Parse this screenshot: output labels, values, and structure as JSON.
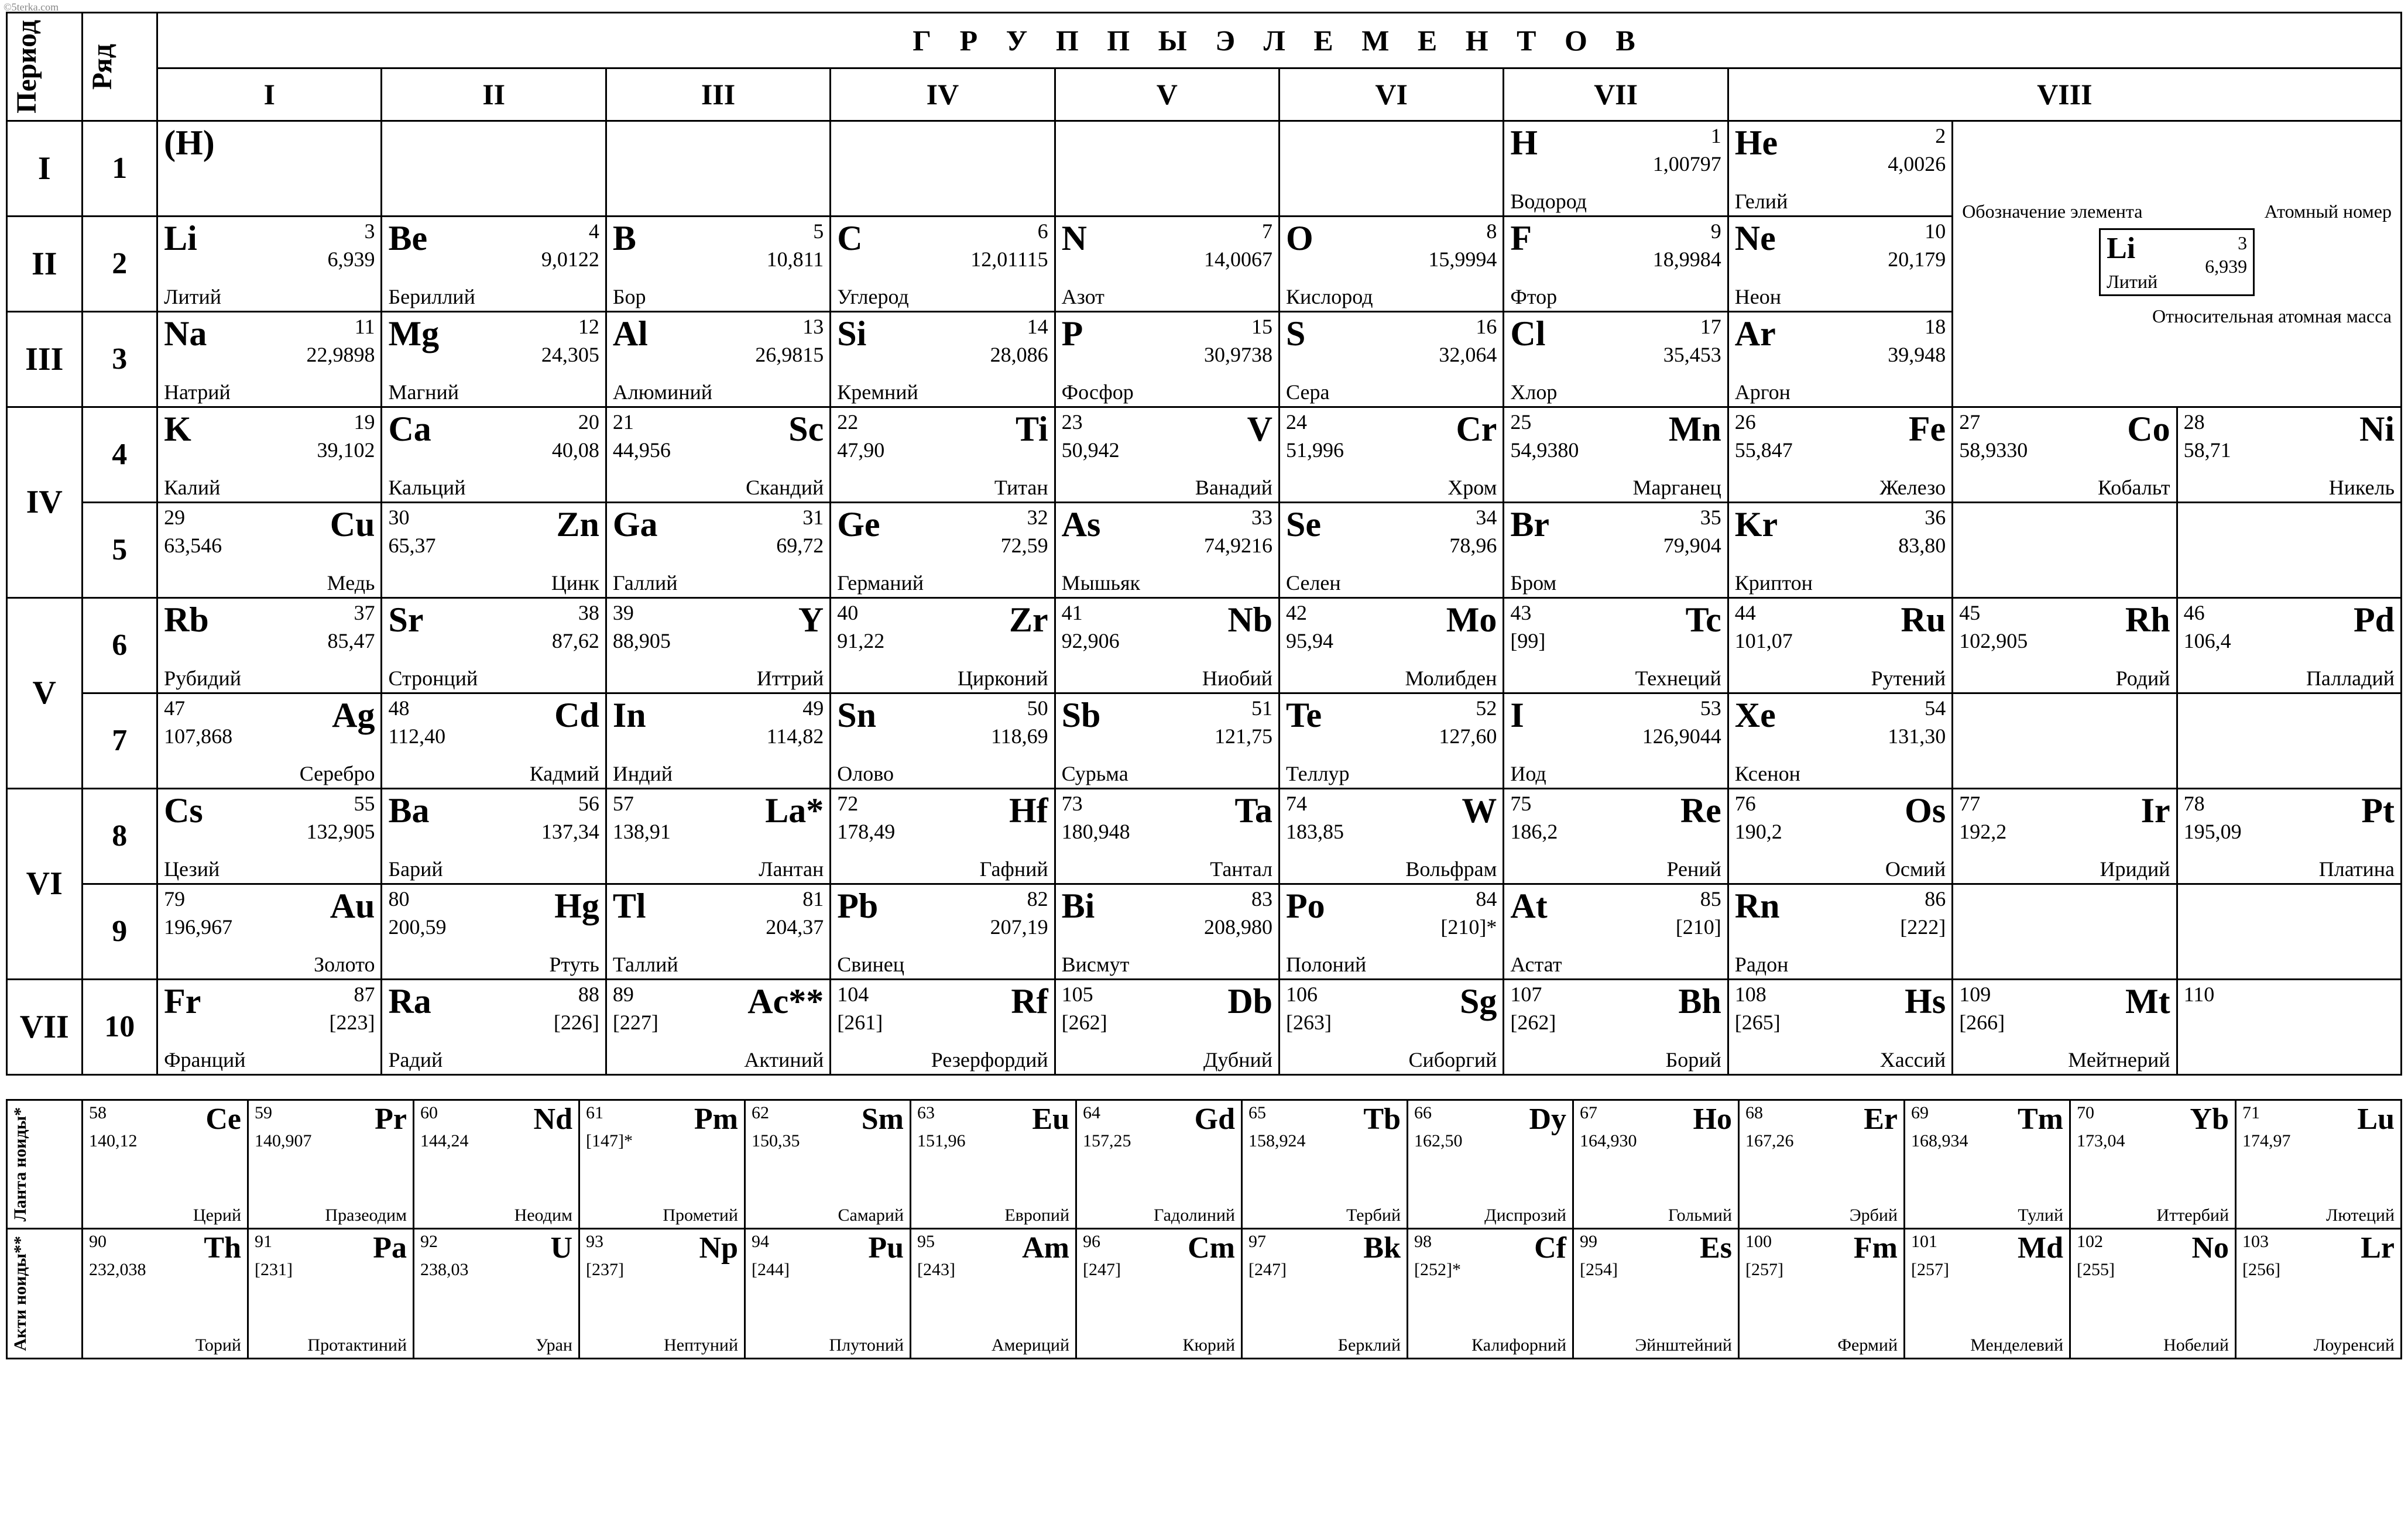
{
  "watermark": "©5terka.com",
  "header_groups": "Г Р У П П Ы   Э Л Е М Е Н Т О В",
  "col_period": "Период",
  "col_row": "Ряд",
  "groups": [
    "I",
    "II",
    "III",
    "IV",
    "V",
    "VI",
    "VII",
    "VIII"
  ],
  "periods": [
    "I",
    "II",
    "III",
    "IV",
    "V",
    "VI",
    "VII"
  ],
  "legend": {
    "designation": "Обозначение элемента",
    "atomic_no": "Атомный номер",
    "mass": "Относительная атомная масса",
    "sym": "Li",
    "num": "3",
    "massv": "6,939",
    "name": "Литий"
  },
  "lant_label": "Ланта ноиды*",
  "act_label": "Акти ноиды**",
  "rows": [
    {
      "period": "I",
      "row": "1",
      "cells": [
        {
          "align": "A",
          "sym": "(H)",
          "num": "",
          "mass": "",
          "name": ""
        },
        null,
        null,
        null,
        null,
        null,
        {
          "align": "A",
          "sym": "H",
          "num": "1",
          "mass": "1,00797",
          "name": "Водород"
        },
        {
          "align": "A",
          "sym": "He",
          "num": "2",
          "mass": "4,0026",
          "name": "Гелий"
        },
        {
          "legend": true
        },
        {
          "legend": true
        }
      ]
    },
    {
      "period": "II",
      "row": "2",
      "cells": [
        {
          "align": "A",
          "sym": "Li",
          "num": "3",
          "mass": "6,939",
          "name": "Литий"
        },
        {
          "align": "A",
          "sym": "Be",
          "num": "4",
          "mass": "9,0122",
          "name": "Бериллий"
        },
        {
          "align": "A",
          "sym": "B",
          "num": "5",
          "mass": "10,811",
          "name": "Бор"
        },
        {
          "align": "A",
          "sym": "C",
          "num": "6",
          "mass": "12,01115",
          "name": "Углерод"
        },
        {
          "align": "A",
          "sym": "N",
          "num": "7",
          "mass": "14,0067",
          "name": "Азот"
        },
        {
          "align": "A",
          "sym": "O",
          "num": "8",
          "mass": "15,9994",
          "name": "Кислород"
        },
        {
          "align": "A",
          "sym": "F",
          "num": "9",
          "mass": "18,9984",
          "name": "Фтор"
        },
        {
          "align": "A",
          "sym": "Ne",
          "num": "10",
          "mass": "20,179",
          "name": "Неон"
        },
        {
          "legend": true
        },
        {
          "legend": true
        }
      ]
    },
    {
      "period": "III",
      "row": "3",
      "cells": [
        {
          "align": "A",
          "sym": "Na",
          "num": "11",
          "mass": "22,9898",
          "name": "Натрий"
        },
        {
          "align": "A",
          "sym": "Mg",
          "num": "12",
          "mass": "24,305",
          "name": "Магний"
        },
        {
          "align": "A",
          "sym": "Al",
          "num": "13",
          "mass": "26,9815",
          "name": "Алюминий"
        },
        {
          "align": "A",
          "sym": "Si",
          "num": "14",
          "mass": "28,086",
          "name": "Кремний"
        },
        {
          "align": "A",
          "sym": "P",
          "num": "15",
          "mass": "30,9738",
          "name": "Фосфор"
        },
        {
          "align": "A",
          "sym": "S",
          "num": "16",
          "mass": "32,064",
          "name": "Сера"
        },
        {
          "align": "A",
          "sym": "Cl",
          "num": "17",
          "mass": "35,453",
          "name": "Хлор"
        },
        {
          "align": "A",
          "sym": "Ar",
          "num": "18",
          "mass": "39,948",
          "name": "Аргон"
        },
        {
          "legend": true
        },
        {
          "legend": true
        }
      ]
    },
    {
      "period": "IV",
      "row": "4",
      "cells": [
        {
          "align": "A",
          "sym": "K",
          "num": "19",
          "mass": "39,102",
          "name": "Калий"
        },
        {
          "align": "A",
          "sym": "Ca",
          "num": "20",
          "mass": "40,08",
          "name": "Кальций"
        },
        {
          "align": "B",
          "sym": "Sc",
          "num": "21",
          "mass": "44,956",
          "name": "Скандий"
        },
        {
          "align": "B",
          "sym": "Ti",
          "num": "22",
          "mass": "47,90",
          "name": "Титан"
        },
        {
          "align": "B",
          "sym": "V",
          "num": "23",
          "mass": "50,942",
          "name": "Ванадий"
        },
        {
          "align": "B",
          "sym": "Cr",
          "num": "24",
          "mass": "51,996",
          "name": "Хром"
        },
        {
          "align": "B",
          "sym": "Mn",
          "num": "25",
          "mass": "54,9380",
          "name": "Марганец"
        },
        {
          "align": "B",
          "sym": "Fe",
          "num": "26",
          "mass": "55,847",
          "name": "Железо"
        },
        {
          "align": "B",
          "sym": "Co",
          "num": "27",
          "mass": "58,9330",
          "name": "Кобальт"
        },
        {
          "align": "B",
          "sym": "Ni",
          "num": "28",
          "mass": "58,71",
          "name": "Никель"
        }
      ]
    },
    {
      "period": "",
      "row": "5",
      "cells": [
        {
          "align": "B",
          "sym": "Cu",
          "num": "29",
          "mass": "63,546",
          "name": "Медь"
        },
        {
          "align": "B",
          "sym": "Zn",
          "num": "30",
          "mass": "65,37",
          "name": "Цинк"
        },
        {
          "align": "A",
          "sym": "Ga",
          "num": "31",
          "mass": "69,72",
          "name": "Галлий"
        },
        {
          "align": "A",
          "sym": "Ge",
          "num": "32",
          "mass": "72,59",
          "name": "Германий"
        },
        {
          "align": "A",
          "sym": "As",
          "num": "33",
          "mass": "74,9216",
          "name": "Мышьяк"
        },
        {
          "align": "A",
          "sym": "Se",
          "num": "34",
          "mass": "78,96",
          "name": "Селен"
        },
        {
          "align": "A",
          "sym": "Br",
          "num": "35",
          "mass": "79,904",
          "name": "Бром"
        },
        {
          "align": "A",
          "sym": "Kr",
          "num": "36",
          "mass": "83,80",
          "name": "Криптон"
        },
        null,
        null
      ]
    },
    {
      "period": "V",
      "row": "6",
      "cells": [
        {
          "align": "A",
          "sym": "Rb",
          "num": "37",
          "mass": "85,47",
          "name": "Рубидий"
        },
        {
          "align": "A",
          "sym": "Sr",
          "num": "38",
          "mass": "87,62",
          "name": "Стронций"
        },
        {
          "align": "B",
          "sym": "Y",
          "num": "39",
          "mass": "88,905",
          "name": "Иттрий"
        },
        {
          "align": "B",
          "sym": "Zr",
          "num": "40",
          "mass": "91,22",
          "name": "Цирконий"
        },
        {
          "align": "B",
          "sym": "Nb",
          "num": "41",
          "mass": "92,906",
          "name": "Ниобий"
        },
        {
          "align": "B",
          "sym": "Mo",
          "num": "42",
          "mass": "95,94",
          "name": "Молибден"
        },
        {
          "align": "B",
          "sym": "Tc",
          "num": "43",
          "mass": "[99]",
          "name": "Технеций"
        },
        {
          "align": "B",
          "sym": "Ru",
          "num": "44",
          "mass": "101,07",
          "name": "Рутений"
        },
        {
          "align": "B",
          "sym": "Rh",
          "num": "45",
          "mass": "102,905",
          "name": "Родий"
        },
        {
          "align": "B",
          "sym": "Pd",
          "num": "46",
          "mass": "106,4",
          "name": "Палладий"
        }
      ]
    },
    {
      "period": "",
      "row": "7",
      "cells": [
        {
          "align": "B",
          "sym": "Ag",
          "num": "47",
          "mass": "107,868",
          "name": "Серебро"
        },
        {
          "align": "B",
          "sym": "Cd",
          "num": "48",
          "mass": "112,40",
          "name": "Кадмий"
        },
        {
          "align": "A",
          "sym": "In",
          "num": "49",
          "mass": "114,82",
          "name": "Индий"
        },
        {
          "align": "A",
          "sym": "Sn",
          "num": "50",
          "mass": "118,69",
          "name": "Олово"
        },
        {
          "align": "A",
          "sym": "Sb",
          "num": "51",
          "mass": "121,75",
          "name": "Сурьма"
        },
        {
          "align": "A",
          "sym": "Te",
          "num": "52",
          "mass": "127,60",
          "name": "Теллур"
        },
        {
          "align": "A",
          "sym": "I",
          "num": "53",
          "mass": "126,9044",
          "name": "Иод"
        },
        {
          "align": "A",
          "sym": "Xe",
          "num": "54",
          "mass": "131,30",
          "name": "Ксенон"
        },
        null,
        null
      ]
    },
    {
      "period": "VI",
      "row": "8",
      "cells": [
        {
          "align": "A",
          "sym": "Cs",
          "num": "55",
          "mass": "132,905",
          "name": "Цезий"
        },
        {
          "align": "A",
          "sym": "Ba",
          "num": "56",
          "mass": "137,34",
          "name": "Барий"
        },
        {
          "align": "B",
          "sym": "La*",
          "num": "57",
          "mass": "138,91",
          "name": "Лантан"
        },
        {
          "align": "B",
          "sym": "Hf",
          "num": "72",
          "mass": "178,49",
          "name": "Гафний"
        },
        {
          "align": "B",
          "sym": "Ta",
          "num": "73",
          "mass": "180,948",
          "name": "Тантал"
        },
        {
          "align": "B",
          "sym": "W",
          "num": "74",
          "mass": "183,85",
          "name": "Вольфрам"
        },
        {
          "align": "B",
          "sym": "Re",
          "num": "75",
          "mass": "186,2",
          "name": "Рений"
        },
        {
          "align": "B",
          "sym": "Os",
          "num": "76",
          "mass": "190,2",
          "name": "Осмий"
        },
        {
          "align": "B",
          "sym": "Ir",
          "num": "77",
          "mass": "192,2",
          "name": "Иридий"
        },
        {
          "align": "B",
          "sym": "Pt",
          "num": "78",
          "mass": "195,09",
          "name": "Платина"
        }
      ]
    },
    {
      "period": "",
      "row": "9",
      "cells": [
        {
          "align": "B",
          "sym": "Au",
          "num": "79",
          "mass": "196,967",
          "name": "Золото"
        },
        {
          "align": "B",
          "sym": "Hg",
          "num": "80",
          "mass": "200,59",
          "name": "Ртуть"
        },
        {
          "align": "A",
          "sym": "Tl",
          "num": "81",
          "mass": "204,37",
          "name": "Таллий"
        },
        {
          "align": "A",
          "sym": "Pb",
          "num": "82",
          "mass": "207,19",
          "name": "Свинец"
        },
        {
          "align": "A",
          "sym": "Bi",
          "num": "83",
          "mass": "208,980",
          "name": "Висмут"
        },
        {
          "align": "A",
          "sym": "Po",
          "num": "84",
          "mass": "[210]*",
          "name": "Полоний"
        },
        {
          "align": "A",
          "sym": "At",
          "num": "85",
          "mass": "[210]",
          "name": "Астат"
        },
        {
          "align": "A",
          "sym": "Rn",
          "num": "86",
          "mass": "[222]",
          "name": "Радон"
        },
        null,
        null
      ]
    },
    {
      "period": "VII",
      "row": "10",
      "cells": [
        {
          "align": "A",
          "sym": "Fr",
          "num": "87",
          "mass": "[223]",
          "name": "Франций"
        },
        {
          "align": "A",
          "sym": "Ra",
          "num": "88",
          "mass": "[226]",
          "name": "Радий"
        },
        {
          "align": "B",
          "sym": "Ac**",
          "num": "89",
          "mass": "[227]",
          "name": "Актиний"
        },
        {
          "align": "B",
          "sym": "Rf",
          "num": "104",
          "mass": "[261]",
          "name": "Резерфордий"
        },
        {
          "align": "B",
          "sym": "Db",
          "num": "105",
          "mass": "[262]",
          "name": "Дубний"
        },
        {
          "align": "B",
          "sym": "Sg",
          "num": "106",
          "mass": "[263]",
          "name": "Сиборгий"
        },
        {
          "align": "B",
          "sym": "Bh",
          "num": "107",
          "mass": "[262]",
          "name": "Борий"
        },
        {
          "align": "B",
          "sym": "Hs",
          "num": "108",
          "mass": "[265]",
          "name": "Хассий"
        },
        {
          "align": "B",
          "sym": "Mt",
          "num": "109",
          "mass": "[266]",
          "name": "Мейтнерий"
        },
        {
          "align": "B",
          "sym": "",
          "num": "110",
          "mass": "",
          "name": ""
        }
      ]
    }
  ],
  "lanth": [
    {
      "sym": "Ce",
      "num": "58",
      "mass": "140,12",
      "name": "Церий"
    },
    {
      "sym": "Pr",
      "num": "59",
      "mass": "140,907",
      "name": "Празеодим"
    },
    {
      "sym": "Nd",
      "num": "60",
      "mass": "144,24",
      "name": "Неодим"
    },
    {
      "sym": "Pm",
      "num": "61",
      "mass": "[147]*",
      "name": "Прометий"
    },
    {
      "sym": "Sm",
      "num": "62",
      "mass": "150,35",
      "name": "Самарий"
    },
    {
      "sym": "Eu",
      "num": "63",
      "mass": "151,96",
      "name": "Европий"
    },
    {
      "sym": "Gd",
      "num": "64",
      "mass": "157,25",
      "name": "Гадолиний"
    },
    {
      "sym": "Tb",
      "num": "65",
      "mass": "158,924",
      "name": "Тербий"
    },
    {
      "sym": "Dy",
      "num": "66",
      "mass": "162,50",
      "name": "Диспрозий"
    },
    {
      "sym": "Ho",
      "num": "67",
      "mass": "164,930",
      "name": "Гольмий"
    },
    {
      "sym": "Er",
      "num": "68",
      "mass": "167,26",
      "name": "Эрбий"
    },
    {
      "sym": "Tm",
      "num": "69",
      "mass": "168,934",
      "name": "Тулий"
    },
    {
      "sym": "Yb",
      "num": "70",
      "mass": "173,04",
      "name": "Иттербий"
    },
    {
      "sym": "Lu",
      "num": "71",
      "mass": "174,97",
      "name": "Лютеций"
    }
  ],
  "act": [
    {
      "sym": "Th",
      "num": "90",
      "mass": "232,038",
      "name": "Торий"
    },
    {
      "sym": "Pa",
      "num": "91",
      "mass": "[231]",
      "name": "Протактиний"
    },
    {
      "sym": "U",
      "num": "92",
      "mass": "238,03",
      "name": "Уран"
    },
    {
      "sym": "Np",
      "num": "93",
      "mass": "[237]",
      "name": "Нептуний"
    },
    {
      "sym": "Pu",
      "num": "94",
      "mass": "[244]",
      "name": "Плутоний"
    },
    {
      "sym": "Am",
      "num": "95",
      "mass": "[243]",
      "name": "Америций"
    },
    {
      "sym": "Cm",
      "num": "96",
      "mass": "[247]",
      "name": "Кюрий"
    },
    {
      "sym": "Bk",
      "num": "97",
      "mass": "[247]",
      "name": "Берклий"
    },
    {
      "sym": "Cf",
      "num": "98",
      "mass": "[252]*",
      "name": "Калифорний"
    },
    {
      "sym": "Es",
      "num": "99",
      "mass": "[254]",
      "name": "Эйнштейний"
    },
    {
      "sym": "Fm",
      "num": "100",
      "mass": "[257]",
      "name": "Фермий"
    },
    {
      "sym": "Md",
      "num": "101",
      "mass": "[257]",
      "name": "Менделевий"
    },
    {
      "sym": "No",
      "num": "102",
      "mass": "[255]",
      "name": "Нобелий"
    },
    {
      "sym": "Lr",
      "num": "103",
      "mass": "[256]",
      "name": "Лоуренсий"
    }
  ],
  "style": {
    "border_color": "#000000",
    "background": "#ffffff",
    "font": "Times New Roman",
    "main_cols": 12,
    "lower_cols": 15
  }
}
